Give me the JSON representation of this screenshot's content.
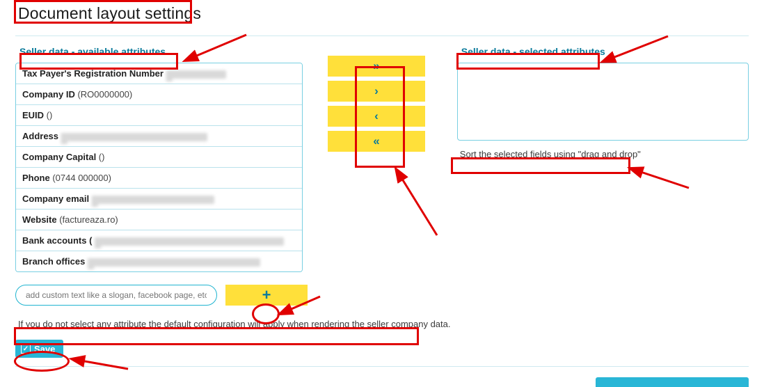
{
  "colors": {
    "accent": "#0b7b9b",
    "button_bg": "#ffe03a",
    "save_bg": "#29b6d6",
    "border": "#78cfe2",
    "annotation": "#e00000"
  },
  "page": {
    "title": "Document layout settings"
  },
  "available": {
    "heading": "Seller data - available attributes",
    "items": [
      {
        "label": "Tax Payer's Registration Number",
        "value": "",
        "blur_width": 86
      },
      {
        "label": "Company ID",
        "value": "(RO0000000)",
        "blur_width": 0
      },
      {
        "label": "EUID",
        "value": "()",
        "blur_width": 0
      },
      {
        "label": "Address",
        "value": "",
        "blur_width": 210
      },
      {
        "label": "Company Capital",
        "value": "()",
        "blur_width": 0
      },
      {
        "label": "Phone",
        "value": "(0744 000000)",
        "blur_width": 0
      },
      {
        "label": "Company email",
        "value": "",
        "blur_width": 176
      },
      {
        "label": "Website",
        "value": "(factureaza.ro)",
        "blur_width": 0
      },
      {
        "label": "Bank accounts (",
        "value": "",
        "blur_width": 272
      },
      {
        "label": "Branch offices",
        "value": "",
        "blur_width": 248
      }
    ]
  },
  "selected": {
    "heading": "Seller data - selected attributes",
    "sort_help": "Sort the selected fields using \"drag and drop\""
  },
  "transfer_icons": {
    "all_right": "»",
    "one_right": "›",
    "one_left": "‹",
    "all_left": "«"
  },
  "custom_input": {
    "placeholder": "add custom text like a slogan, facebook page, etc."
  },
  "plus_icon": "+",
  "info_text": "If you do not select any attribute the default configuration will apply when rendering the seller company data.",
  "save": {
    "label": "Save",
    "check": "✓"
  }
}
